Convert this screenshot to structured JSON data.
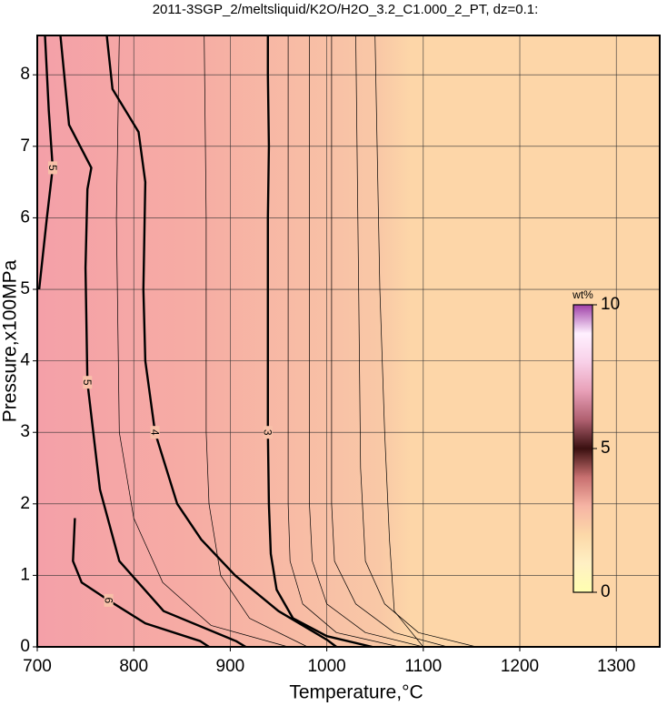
{
  "chart_data": {
    "type": "contour",
    "title": "2011-3SGP_2/meltsliquid/K2O/H2O_3.2_C1.000_2_PT, dz=0.1:",
    "x_label": "Temperature,°C",
    "y_label": "Pressure,x100MPa",
    "xlim": [
      700,
      1345
    ],
    "ylim": [
      0,
      8.55
    ],
    "xticks": [
      700,
      800,
      900,
      1000,
      1100,
      1200,
      1300
    ],
    "yticks": [
      0,
      1,
      2,
      3,
      4,
      5,
      6,
      7,
      8
    ],
    "grid": true,
    "contours": [
      {
        "level": 3,
        "thick": true,
        "x": [
          1047,
          1000,
          965,
          948,
          942,
          940,
          939,
          939,
          939,
          939,
          940,
          939,
          939
        ],
        "y": [
          0,
          0.15,
          0.4,
          0.8,
          1.3,
          2,
          3,
          4,
          5,
          6,
          7,
          8,
          8.55
        ]
      },
      {
        "level": 4,
        "thick": true,
        "x": [
          1010,
          1000,
          950,
          905,
          870,
          845,
          822,
          812,
          810,
          812,
          805,
          778,
          772
        ],
        "y": [
          0,
          0.1,
          0.5,
          1,
          1.5,
          2,
          3,
          4,
          5,
          6.5,
          7.2,
          7.8,
          8.55
        ]
      },
      {
        "level": 5,
        "thick": true,
        "x": [
          916,
          906,
          831,
          785,
          765,
          752,
          750,
          752,
          756,
          733,
          724
        ],
        "y": [
          0,
          0.08,
          0.5,
          1.2,
          2.2,
          3.7,
          5.3,
          6.4,
          6.7,
          7.3,
          8.55
        ]
      },
      {
        "level": 5,
        "thick": true,
        "x": [
          702,
          710,
          716,
          712,
          708
        ],
        "y": [
          5,
          6,
          6.7,
          7.5,
          8.55
        ]
      },
      {
        "level": 6,
        "thick": true,
        "x": [
          878,
          869,
          812,
          774,
          746,
          737,
          739
        ],
        "y": [
          0,
          0.08,
          0.33,
          0.65,
          0.9,
          1.2,
          1.8
        ]
      },
      {
        "level": 2.8,
        "thick": false,
        "x": [
          1075,
          1010,
          975,
          962,
          960,
          960,
          960
        ],
        "y": [
          0,
          0.2,
          0.6,
          1.2,
          2,
          5,
          8.55
        ]
      },
      {
        "level": 2.6,
        "thick": false,
        "x": [
          1100,
          1040,
          1000,
          985,
          982,
          982,
          982
        ],
        "y": [
          0,
          0.2,
          0.6,
          1.2,
          2,
          5,
          8.55
        ]
      },
      {
        "level": 2.4,
        "thick": false,
        "x": [
          1125,
          1070,
          1030,
          1008,
          1005,
          1005,
          1005
        ],
        "y": [
          0,
          0.2,
          0.6,
          1.2,
          2,
          5,
          8.55
        ]
      },
      {
        "level": 2.2,
        "thick": false,
        "x": [
          1155,
          1095,
          1060,
          1040,
          1035,
          1033,
          1030
        ],
        "y": [
          0,
          0.2,
          0.6,
          1.2,
          2.5,
          5,
          8.55
        ]
      },
      {
        "level": 2.0,
        "thick": false,
        "x": [
          1100,
          1070,
          1065,
          1060,
          1055,
          1050
        ],
        "y": [
          0,
          0.5,
          1.5,
          3,
          5,
          8.55
        ]
      },
      {
        "level": 3.5,
        "thick": false,
        "x": [
          980,
          920,
          890,
          878,
          875,
          875,
          873
        ],
        "y": [
          0,
          0.4,
          1,
          2,
          3,
          6,
          8.55
        ]
      },
      {
        "level": 4.5,
        "thick": false,
        "x": [
          960,
          880,
          830,
          800,
          785,
          782,
          785
        ],
        "y": [
          0,
          0.3,
          0.9,
          1.8,
          3,
          6,
          8.55
        ]
      }
    ],
    "colorbar": {
      "label": "wt%",
      "lim": [
        0,
        10
      ],
      "ticks": [
        0,
        5,
        10
      ],
      "colors": [
        "#ffffb0",
        "#fff0c4",
        "#fcd8a8",
        "#f6b4a4",
        "#c87070",
        "#3a1010",
        "#b06070",
        "#e8a0b8",
        "#f8d0e8",
        "#fff0ff",
        "#a040a8"
      ]
    }
  }
}
